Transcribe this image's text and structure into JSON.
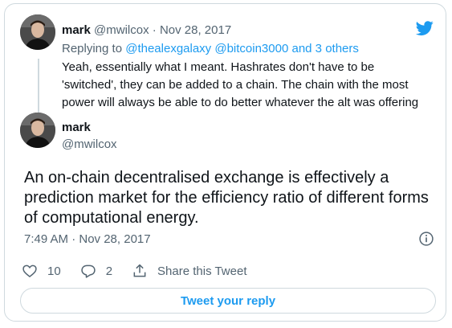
{
  "quoted_tweet": {
    "name": "mark",
    "handle": "@mwilcox",
    "separator": "·",
    "date": "Nov 28, 2017",
    "replying_prefix": "Replying to",
    "replying_users": "@thealexgalaxy @bitcoin3000",
    "replying_suffix": "and 3 others",
    "text": "Yeah, essentially what I meant. Hashrates don't have to be 'switched', they can be added to a chain. The chain with the most power will always be able to do better whatever the alt was offering"
  },
  "main_tweet": {
    "name": "mark",
    "handle": "@mwilcox",
    "text": "An on-chain decentralised exchange is effectively a prediction market for the efficiency ratio of different forms of computational energy.",
    "timestamp": "7:49 AM · Nov 28, 2017"
  },
  "actions": {
    "likes": "10",
    "replies": "2",
    "share_label": "Share this Tweet"
  },
  "reply_button": "Tweet your reply",
  "colors": {
    "accent": "#1d9bf0",
    "muted": "#536471",
    "border": "#cfd9de"
  },
  "icons": [
    "twitter-bird-icon",
    "info-icon",
    "heart-icon",
    "reply-icon",
    "share-icon"
  ]
}
